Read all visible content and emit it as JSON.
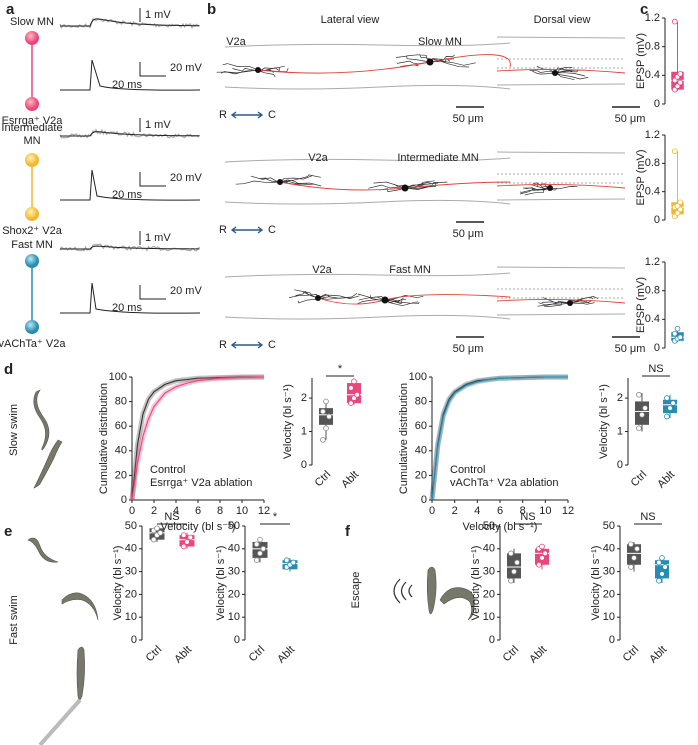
{
  "panel_labels": [
    "a",
    "b",
    "c",
    "d",
    "e",
    "f"
  ],
  "panel_a": {
    "rows": [
      {
        "mn": "Slow MN",
        "v2a": "Esrrga⁺ V2a",
        "scale_small": "1 mV",
        "scale_large": "20 mV",
        "scale_time": "20 ms"
      },
      {
        "mn": "Intermediate MN",
        "v2a": "Shox2⁺ V2a",
        "scale_small": "1 mV",
        "scale_large": "20 mV",
        "scale_time": "20 ms"
      },
      {
        "mn": "Fast MN",
        "v2a": "vAChTa⁺ V2a",
        "scale_small": "1 mV",
        "scale_large": "20 mV",
        "scale_time": "20 ms"
      }
    ]
  },
  "panel_b": {
    "lateral_title": "Lateral view",
    "dorsal_title": "Dorsal view",
    "rows": [
      {
        "v2a": "V2a",
        "mn": "Slow MN",
        "rostral": "R",
        "caudal": "C",
        "scale_lateral": "50 μm",
        "scale_dorsal": "50 μm"
      },
      {
        "v2a": "V2a",
        "mn": "Intermediate MN",
        "rostral": "R",
        "caudal": "C",
        "scale_lateral": "50 μm"
      },
      {
        "v2a": "V2a",
        "mn": "Fast MN",
        "rostral": "R",
        "caudal": "C",
        "scale_lateral": "50 μm",
        "scale_dorsal": "50 μm"
      }
    ]
  },
  "panel_d": {
    "behavior": "Slow swim"
  },
  "panel_e": {
    "behavior": "Fast swim"
  },
  "panel_f": {
    "behavior": "Escape"
  },
  "chart_data": [
    {
      "type": "box",
      "ylabel": "EPSP (mV)",
      "ylim": [
        0,
        1.2
      ],
      "yticks": [
        0,
        0.4,
        0.8,
        1.2
      ],
      "boxes": [
        {
          "color": "#e8467c",
          "min": 0.18,
          "q1": 0.2,
          "median": 0.33,
          "q3": 0.45,
          "max": 1.15,
          "points": [
            0.2,
            0.25,
            0.3,
            0.33,
            0.38,
            0.42,
            1.15
          ]
        }
      ]
    },
    {
      "type": "box",
      "ylabel": "EPSP (mV)",
      "ylim": [
        0,
        1.2
      ],
      "yticks": [
        0,
        0.4,
        0.8,
        1.2
      ],
      "boxes": [
        {
          "color": "#f2b731",
          "min": 0.03,
          "q1": 0.08,
          "median": 0.18,
          "q3": 0.25,
          "max": 0.97,
          "points": [
            0.05,
            0.1,
            0.15,
            0.18,
            0.2,
            0.25,
            0.97
          ]
        }
      ]
    },
    {
      "type": "box",
      "ylabel": "EPSP (mV)",
      "ylim": [
        0,
        1.2
      ],
      "yticks": [
        0,
        0.4,
        0.8,
        1.2
      ],
      "boxes": [
        {
          "color": "#2a8bb0",
          "min": 0.08,
          "q1": 0.1,
          "median": 0.15,
          "q3": 0.22,
          "max": 0.28,
          "points": [
            0.1,
            0.13,
            0.15,
            0.2,
            0.27
          ]
        }
      ]
    },
    {
      "type": "line",
      "xlabel": "Velocity (bl s⁻¹)",
      "ylabel": "Cumulative distribution",
      "x": [
        0,
        0.5,
        1,
        1.5,
        2,
        3,
        4,
        5,
        6,
        8,
        10,
        12
      ],
      "series": [
        {
          "name": "Control",
          "color": "#333333",
          "values": [
            0,
            45,
            70,
            82,
            88,
            94,
            97,
            98,
            99,
            99.5,
            100,
            100
          ]
        },
        {
          "name": "Esrrga⁺ V2a ablation",
          "color": "#e8467c",
          "values": [
            0,
            30,
            52,
            66,
            76,
            87,
            92,
            95,
            97,
            99,
            99.7,
            100
          ]
        }
      ],
      "xlim": [
        0,
        12
      ],
      "xticks": [
        0,
        2,
        4,
        6,
        8,
        10,
        12
      ],
      "ylim": [
        0,
        100
      ],
      "yticks": [
        0,
        20,
        40,
        60,
        80,
        100
      ]
    },
    {
      "type": "box",
      "ylabel": "Velocity (bl s⁻¹)",
      "categories": [
        "Ctrl",
        "Ablt"
      ],
      "annotation": "*",
      "ylim": [
        0,
        2.6
      ],
      "yticks": [
        0,
        1,
        2
      ],
      "boxes": [
        {
          "color": "#555555",
          "min": 0.75,
          "q1": 1.2,
          "median": 1.5,
          "q3": 1.7,
          "max": 1.9,
          "points": [
            0.75,
            1.1,
            1.45,
            1.6,
            1.9
          ]
        },
        {
          "color": "#e8467c",
          "min": 1.8,
          "q1": 1.85,
          "median": 2.1,
          "q3": 2.45,
          "max": 2.55,
          "points": [
            1.85,
            2.0,
            2.1,
            2.3,
            2.5
          ]
        }
      ]
    },
    {
      "type": "line",
      "xlabel": "Velocity (bl s⁻¹)",
      "ylabel": "Cumulative distribution",
      "x": [
        0,
        0.5,
        1,
        1.5,
        2,
        3,
        4,
        5,
        6,
        8,
        10,
        12
      ],
      "series": [
        {
          "name": "Control",
          "color": "#333333",
          "values": [
            0,
            45,
            70,
            82,
            88,
            94,
            97,
            98,
            99,
            99.5,
            100,
            100
          ]
        },
        {
          "name": "vAChTa⁺ V2a ablation",
          "color": "#2a8bb0",
          "values": [
            0,
            43,
            68,
            80,
            87,
            93,
            96,
            98,
            99,
            99.5,
            100,
            100
          ]
        }
      ],
      "xlim": [
        0,
        12
      ],
      "xticks": [
        0,
        2,
        4,
        6,
        8,
        10,
        12
      ],
      "ylim": [
        0,
        100
      ],
      "yticks": [
        0,
        20,
        40,
        60,
        80,
        100
      ]
    },
    {
      "type": "box",
      "ylabel": "Velocity (bl s⁻¹)",
      "categories": [
        "Ctrl",
        "Ablt"
      ],
      "annotation": "NS",
      "ylim": [
        0,
        2.6
      ],
      "yticks": [
        0,
        1,
        2
      ],
      "boxes": [
        {
          "color": "#555555",
          "min": 1.0,
          "q1": 1.2,
          "median": 1.6,
          "q3": 1.9,
          "max": 2.15,
          "points": [
            1.1,
            1.5,
            1.7,
            2.1
          ]
        },
        {
          "color": "#2a8bb0",
          "min": 1.4,
          "q1": 1.55,
          "median": 1.8,
          "q3": 1.95,
          "max": 2.1,
          "points": [
            1.45,
            1.7,
            1.85,
            2.0
          ]
        }
      ]
    },
    {
      "type": "box",
      "ylabel": "Velocity (bl s⁻¹)",
      "categories": [
        "Ctrl",
        "Ablt"
      ],
      "annotation": "NS",
      "ylim": [
        0,
        50
      ],
      "yticks": [
        0,
        10,
        20,
        30,
        40,
        50
      ],
      "boxes": [
        {
          "color": "#555555",
          "min": 43,
          "q1": 44,
          "median": 47,
          "q3": 49,
          "max": 50,
          "points": [
            44,
            46,
            47,
            48,
            49
          ]
        },
        {
          "color": "#e8467c",
          "min": 40,
          "q1": 41,
          "median": 44,
          "q3": 46,
          "max": 47,
          "points": [
            41,
            43,
            45,
            46
          ]
        }
      ]
    },
    {
      "type": "box",
      "ylabel": "Velocity (bl s⁻¹)",
      "categories": [
        "Ctrl",
        "Ablt"
      ],
      "annotation": "*",
      "ylim": [
        0,
        50
      ],
      "yticks": [
        0,
        10,
        20,
        30,
        40,
        50
      ],
      "boxes": [
        {
          "color": "#555555",
          "min": 34,
          "q1": 36,
          "median": 40,
          "q3": 43,
          "max": 45,
          "points": [
            35,
            38,
            40,
            42,
            44
          ]
        },
        {
          "color": "#2a8bb0",
          "min": 30,
          "q1": 31,
          "median": 33.5,
          "q3": 35,
          "max": 36,
          "points": [
            32,
            33,
            34,
            35
          ]
        }
      ]
    },
    {
      "type": "box",
      "ylabel": "Velocity (bl s⁻¹)",
      "categories": [
        "Ctrl",
        "Ablt"
      ],
      "annotation": "NS",
      "ylim": [
        0,
        50
      ],
      "yticks": [
        0,
        10,
        20,
        30,
        40,
        50
      ],
      "boxes": [
        {
          "color": "#555555",
          "min": 25,
          "q1": 27,
          "median": 32,
          "q3": 38,
          "max": 40,
          "points": [
            26,
            30,
            34,
            38
          ]
        },
        {
          "color": "#e8467c",
          "min": 31,
          "q1": 33,
          "median": 38,
          "q3": 40,
          "max": 42,
          "points": [
            33,
            36,
            38,
            40,
            41
          ]
        }
      ]
    },
    {
      "type": "box",
      "ylabel": "Velocity (bl s⁻¹)",
      "categories": [
        "Ctrl",
        "Ablt"
      ],
      "annotation": "NS",
      "ylim": [
        0,
        50
      ],
      "yticks": [
        0,
        10,
        20,
        30,
        40,
        50
      ],
      "boxes": [
        {
          "color": "#555555",
          "min": 30,
          "q1": 33,
          "median": 38,
          "q3": 42,
          "max": 43,
          "points": [
            32,
            36,
            40,
            42
          ]
        },
        {
          "color": "#2a8bb0",
          "min": 25,
          "q1": 27,
          "median": 33,
          "q3": 35,
          "max": 37,
          "points": [
            26,
            29,
            32,
            34,
            36
          ]
        }
      ]
    }
  ]
}
